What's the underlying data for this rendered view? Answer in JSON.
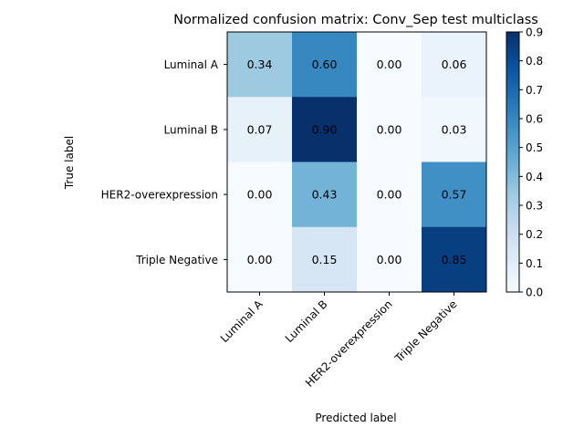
{
  "chart_data": {
    "type": "heatmap",
    "title": "Normalized confusion matrix: Conv_Sep test multiclass",
    "xlabel": "Predicted label",
    "ylabel": "True label",
    "row_labels": [
      "Luminal A",
      "Luminal B",
      "HER2-overexpression",
      "Triple Negative"
    ],
    "col_labels": [
      "Luminal A",
      "Luminal B",
      "HER2-overexpression",
      "Triple Negative"
    ],
    "values": [
      [
        0.34,
        0.6,
        0.0,
        0.06
      ],
      [
        0.07,
        0.9,
        0.0,
        0.03
      ],
      [
        0.0,
        0.43,
        0.0,
        0.57
      ],
      [
        0.0,
        0.15,
        0.0,
        0.85
      ]
    ],
    "value_format": "0.00",
    "colormap": "Blues",
    "color_range": [
      0.0,
      0.9
    ],
    "colorbar_ticks": [
      "0.0",
      "0.1",
      "0.2",
      "0.3",
      "0.4",
      "0.5",
      "0.6",
      "0.7",
      "0.8",
      "0.9"
    ],
    "label_color_threshold": 0.45
  }
}
